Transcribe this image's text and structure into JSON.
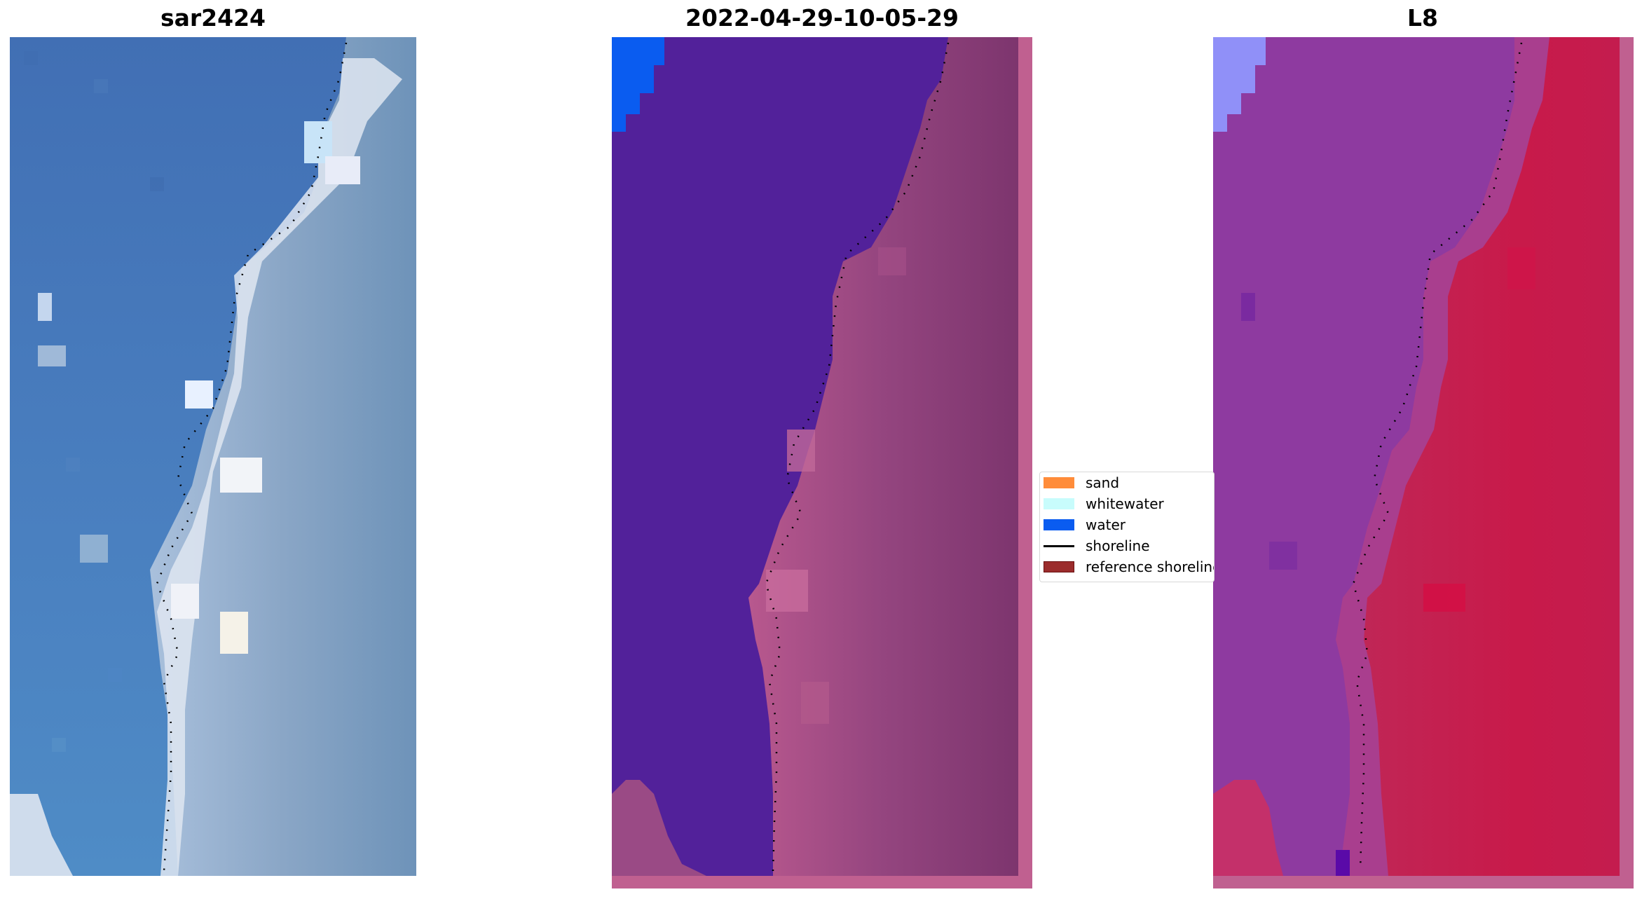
{
  "panels": {
    "left_title": "sar2424",
    "middle_title": "2022-04-29-10-05-29",
    "right_title": "L8"
  },
  "legend": {
    "items": [
      {
        "label": "sand",
        "kind": "patch",
        "color": "#ff8c3a"
      },
      {
        "label": "whitewater",
        "kind": "patch",
        "color": "#c8fcfc"
      },
      {
        "label": "water",
        "kind": "patch",
        "color": "#0a5cf0"
      },
      {
        "label": "shoreline",
        "kind": "line",
        "color": "#000000"
      },
      {
        "label": "reference shoreline",
        "kind": "patch",
        "color": "#9b2c2c"
      }
    ]
  },
  "colors": {
    "rgb_water": "#4474b8",
    "rgb_land": "#7a9cbf",
    "rgb_surf": "#dfe6f1",
    "class_water": "#52219a",
    "class_land": "#8a3c82",
    "class_border": "#c06090",
    "class_blue": "#0a5cf0",
    "ndwi_water": "#8e3aa0",
    "ndwi_land": "#c81a4a",
    "ndwi_blue": "#9090f8"
  }
}
